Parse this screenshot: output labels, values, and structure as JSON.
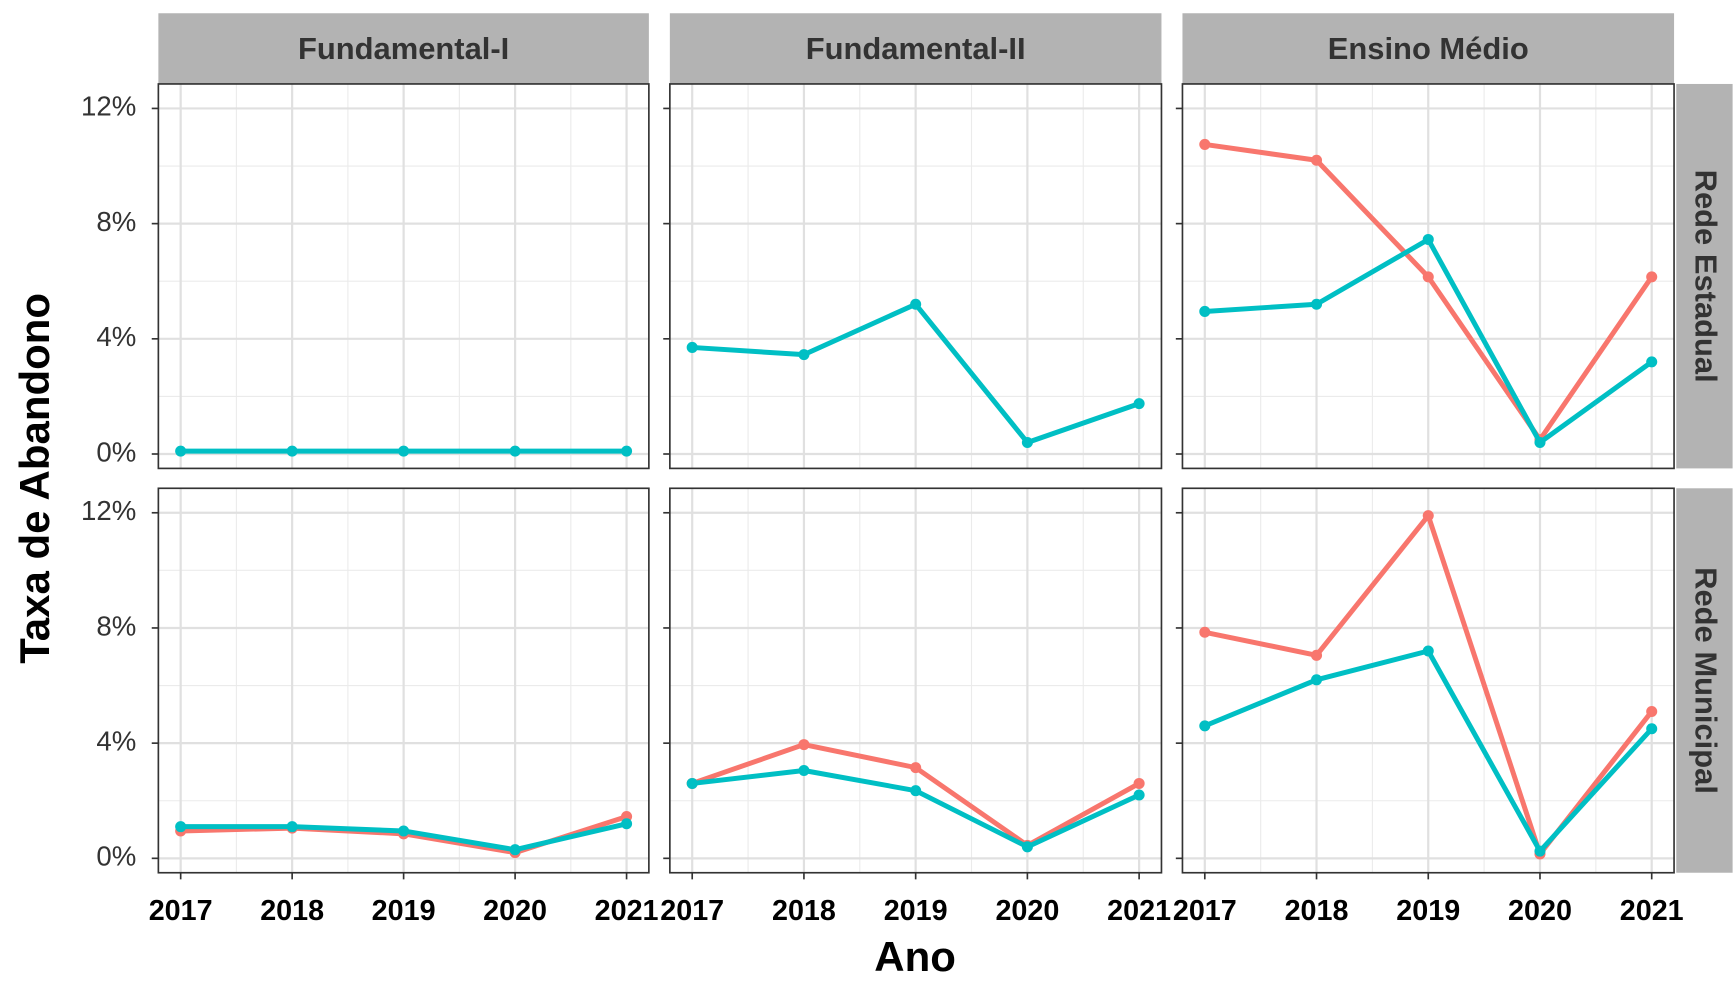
{
  "chart_data": {
    "type": "line",
    "x_label": "Ano",
    "y_label": "Taxa de Abandono",
    "column_labels": [
      "Fundamental-I",
      "Fundamental-II",
      "Ensino Médio"
    ],
    "row_labels": [
      "Rede Estadual",
      "Rede Municipal"
    ],
    "x": [
      2017,
      2018,
      2019,
      2020,
      2021
    ],
    "xlim": [
      2016.8,
      2021.2
    ],
    "xticks": [
      2017,
      2018,
      2019,
      2020,
      2021
    ],
    "minor_xticks": [
      2017.5,
      2018.5,
      2019.5,
      2020.5
    ],
    "ylim": [
      -0.5,
      12.85
    ],
    "yticks": [
      {
        "value": 0,
        "label": "0%"
      },
      {
        "value": 4,
        "label": "4%"
      },
      {
        "value": 8,
        "label": "8%"
      },
      {
        "value": 12,
        "label": "12%"
      }
    ],
    "minor_yticks": [
      2,
      6,
      10
    ],
    "grid": true,
    "panels": [
      [
        {
          "series": [
            {
              "color": "#00BFC4",
              "values": [
                0.1,
                0.1,
                0.1,
                0.1,
                0.1
              ]
            }
          ]
        },
        {
          "series": [
            {
              "color": "#00BFC4",
              "values": [
                3.7,
                3.45,
                5.2,
                0.4,
                1.75
              ]
            }
          ]
        },
        {
          "series": [
            {
              "color": "#F8766D",
              "values": [
                10.75,
                10.2,
                6.15,
                0.5,
                6.15
              ]
            },
            {
              "color": "#00BFC4",
              "values": [
                4.95,
                5.2,
                7.45,
                0.4,
                3.2
              ]
            }
          ]
        }
      ],
      [
        {
          "series": [
            {
              "color": "#F8766D",
              "values": [
                0.95,
                1.05,
                0.85,
                0.2,
                1.45
              ]
            },
            {
              "color": "#00BFC4",
              "values": [
                1.1,
                1.1,
                0.95,
                0.3,
                1.2
              ]
            }
          ]
        },
        {
          "series": [
            {
              "color": "#F8766D",
              "values": [
                2.6,
                3.95,
                3.15,
                0.45,
                2.6
              ]
            },
            {
              "color": "#00BFC4",
              "values": [
                2.6,
                3.05,
                2.35,
                0.4,
                2.2
              ]
            }
          ]
        },
        {
          "series": [
            {
              "color": "#F8766D",
              "values": [
                7.85,
                7.05,
                11.9,
                0.15,
                5.1
              ]
            },
            {
              "color": "#00BFC4",
              "values": [
                4.6,
                6.2,
                7.2,
                0.25,
                4.5
              ]
            }
          ]
        }
      ]
    ]
  }
}
